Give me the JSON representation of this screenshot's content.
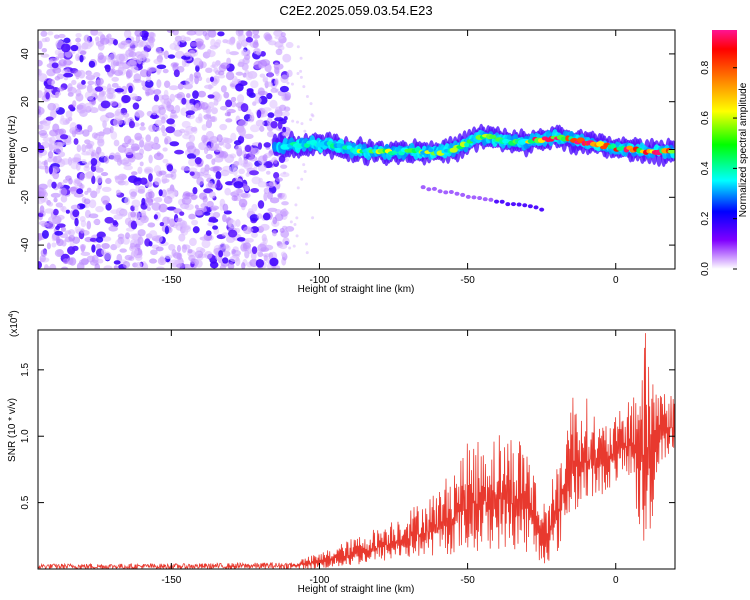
{
  "page_title": "C2E2.2025.059.03.54.E23",
  "chart_data": [
    {
      "type": "heatmap",
      "title": "C2E2.2025.059.03.54.E23",
      "xlabel": "Height of straight line (km)",
      "ylabel": "Frequency (Hz)",
      "xlim": [
        -195,
        20
      ],
      "ylim": [
        -50,
        50
      ],
      "xticks": [
        -150,
        -100,
        -50,
        0
      ],
      "yticks": [
        -40,
        -20,
        0,
        20,
        40
      ],
      "grid": false,
      "colorbar": {
        "label": "Normalized spectral amplitude",
        "range": [
          0,
          0.95
        ],
        "ticks": [
          0.0,
          0.2,
          0.4,
          0.6,
          0.8
        ],
        "colormap": [
          "#ff1493",
          "#ff0000",
          "#ff7f00",
          "#ffff00",
          "#00ff00",
          "#00ffff",
          "#0000ff",
          "#8000ff",
          "#ffffff"
        ]
      },
      "regions": [
        {
          "name_note": "noise",
          "x": [
            -195,
            -110
          ],
          "y": [
            -50,
            50
          ],
          "amplitude": 0.1
        },
        {
          "x": [
            -115,
            20
          ],
          "frequency_center": 0,
          "amplitude": [
            0.2,
            0.95
          ]
        },
        {
          "x": [
            -65,
            -25
          ],
          "y": [
            -16,
            -25
          ],
          "amplitude": 0.08
        }
      ]
    },
    {
      "type": "line",
      "xlabel": "Height of straight line (km)",
      "ylabel": "SNR (10 * v/v)",
      "y_multiplier": "(x10",
      "y_multiplier_exp": "4",
      "y_multiplier_close": ")",
      "xlim": [
        -195,
        20
      ],
      "ylim": [
        0,
        1.8
      ],
      "xticks": [
        -150,
        -100,
        -50,
        0
      ],
      "yticks": [
        0.5,
        1.0,
        1.5
      ],
      "grid": false,
      "series_color": "#e8392e",
      "series_envelope": {
        "x": [
          -195,
          -150,
          -110,
          -100,
          -90,
          -80,
          -70,
          -60,
          -50,
          -40,
          -30,
          -25,
          -20,
          -15,
          -10,
          -5,
          0,
          5,
          10,
          15,
          20
        ],
        "y_max": [
          0.04,
          0.04,
          0.05,
          0.12,
          0.22,
          0.32,
          0.45,
          0.6,
          0.95,
          1.05,
          1.0,
          0.5,
          0.75,
          1.35,
          1.3,
          1.1,
          1.15,
          1.3,
          1.8,
          1.4,
          1.3
        ],
        "y_min": [
          0.0,
          0.0,
          0.0,
          0.0,
          0.02,
          0.05,
          0.08,
          0.1,
          0.12,
          0.15,
          0.12,
          0.02,
          0.1,
          0.4,
          0.5,
          0.55,
          0.65,
          0.7,
          0.0,
          0.8,
          0.9
        ]
      }
    }
  ]
}
